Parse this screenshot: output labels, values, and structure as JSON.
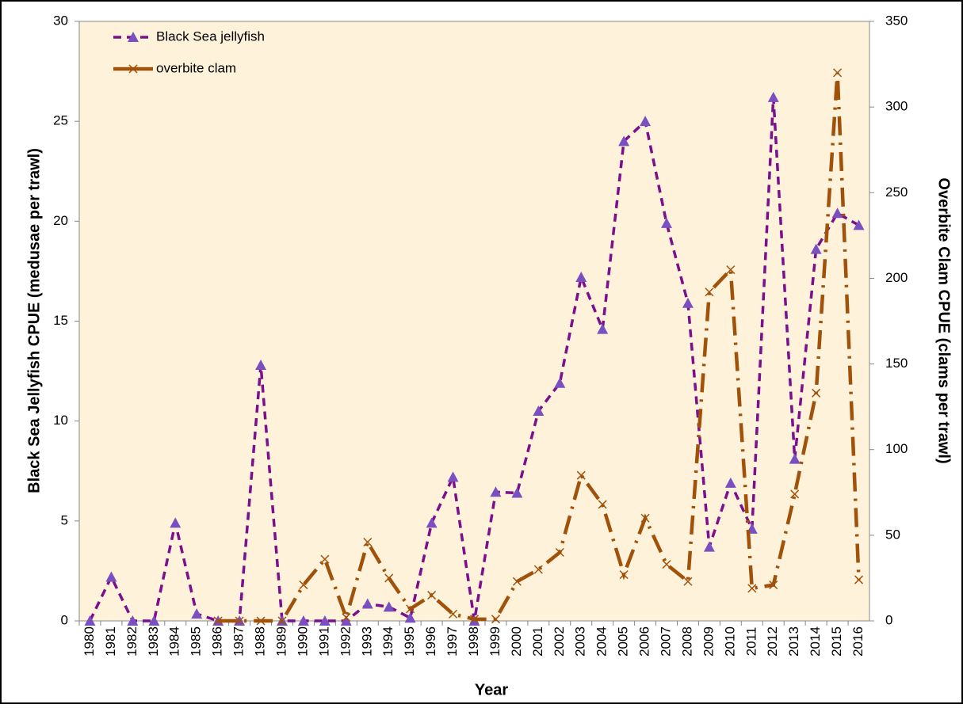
{
  "chart_data": {
    "type": "line",
    "x_label": "Year",
    "y_label": "Black Sea Jellyfish CPUE (medusae per trawl)",
    "y2_label": "Overbite Clam CPUE (clams per trawl)",
    "categories": [
      "1980",
      "1981",
      "1982",
      "1983",
      "1984",
      "1985",
      "1986",
      "1987",
      "1988",
      "1989",
      "1990",
      "1991",
      "1992",
      "1993",
      "1994",
      "1995",
      "1996",
      "1997",
      "1998",
      "1999",
      "2000",
      "2001",
      "2002",
      "2003",
      "2004",
      "2005",
      "2006",
      "2007",
      "2008",
      "2009",
      "2010",
      "2011",
      "2012",
      "2013",
      "2014",
      "2015",
      "2016"
    ],
    "series": [
      {
        "name": "Black Sea jellyfish",
        "color": "#7b0f8c",
        "marker": "triangle",
        "marker_color": "#7a4fc0",
        "dash": "10,7",
        "values": [
          0,
          2.2,
          0,
          0,
          4.9,
          0.35,
          0,
          0,
          12.8,
          0,
          0,
          0,
          0,
          0.85,
          0.7,
          0.15,
          4.9,
          7.2,
          0,
          6.45,
          6.4,
          10.5,
          11.9,
          17.2,
          14.6,
          24.0,
          25.0,
          19.9,
          15.9,
          3.7,
          6.9,
          4.6,
          26.2,
          8.1,
          18.6,
          20.4,
          19.8
        ]
      },
      {
        "name": "overbite clam",
        "color": "#a0520a",
        "marker": "x",
        "axis": "y2",
        "dash": "24,9,3,9",
        "values": [
          null,
          null,
          null,
          null,
          null,
          null,
          0,
          0,
          0,
          0,
          21,
          36,
          2,
          46,
          25,
          7,
          15,
          4,
          1,
          1,
          23,
          30,
          40,
          85,
          68,
          27,
          60,
          33,
          23,
          192,
          205,
          19,
          21,
          74,
          133,
          320,
          24
        ]
      }
    ],
    "ylim": [
      0,
      30
    ],
    "yticks": [
      0,
      5,
      10,
      15,
      20,
      25,
      30
    ],
    "y2lim": [
      0,
      350
    ],
    "y2ticks": [
      0,
      50,
      100,
      150,
      200,
      250,
      300,
      350
    ],
    "legend": "upper-left",
    "background": "#fef2da"
  }
}
